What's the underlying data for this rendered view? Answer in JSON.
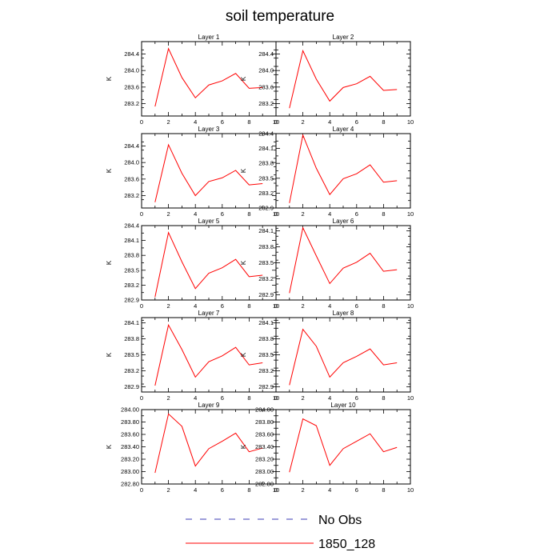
{
  "title": "soil temperature",
  "legend": {
    "placement": "bottom",
    "entries": [
      {
        "label": "No Obs",
        "color": "#3b3bb5",
        "dashed": true
      },
      {
        "label": "1850_128",
        "color": "#ff0000",
        "dashed": false
      }
    ]
  },
  "chart_data": [
    {
      "type": "line",
      "title": "Layer 1",
      "ylabel": "K",
      "xlim": [
        0,
        10
      ],
      "ylim": [
        282.9,
        284.7
      ],
      "xticks": [
        0,
        2,
        4,
        6,
        8,
        10
      ],
      "yticks": [
        "283.2",
        "283.6",
        "284.0",
        "284.4"
      ],
      "series": [
        {
          "name": "1850_128",
          "color": "#ff0000",
          "x": [
            1,
            2,
            3,
            4,
            5,
            6,
            7,
            8,
            9
          ],
          "y": [
            283.13,
            284.53,
            283.83,
            283.34,
            283.65,
            283.75,
            283.93,
            283.57,
            283.59
          ]
        }
      ]
    },
    {
      "type": "line",
      "title": "Layer 2",
      "ylabel": "K",
      "xlim": [
        0,
        10
      ],
      "ylim": [
        282.9,
        284.7
      ],
      "xticks": [
        0,
        2,
        4,
        6,
        8,
        10
      ],
      "yticks": [
        "283.2",
        "283.6",
        "284.0",
        "284.4"
      ],
      "series": [
        {
          "name": "1850_128",
          "color": "#ff0000",
          "x": [
            1,
            2,
            3,
            4,
            5,
            6,
            7,
            8,
            9
          ],
          "y": [
            283.09,
            284.48,
            283.79,
            283.26,
            283.59,
            283.68,
            283.86,
            283.52,
            283.54
          ]
        }
      ]
    },
    {
      "type": "line",
      "title": "Layer 3",
      "ylabel": "K",
      "xlim": [
        0,
        10
      ],
      "ylim": [
        282.9,
        284.7
      ],
      "xticks": [
        0,
        2,
        4,
        6,
        8,
        10
      ],
      "yticks": [
        "283.2",
        "283.6",
        "284.0",
        "284.4"
      ],
      "series": [
        {
          "name": "1850_128",
          "color": "#ff0000",
          "x": [
            1,
            2,
            3,
            4,
            5,
            6,
            7,
            8,
            9
          ],
          "y": [
            283.04,
            284.43,
            283.74,
            283.2,
            283.54,
            283.63,
            283.81,
            283.46,
            283.49
          ]
        }
      ]
    },
    {
      "type": "line",
      "title": "Layer 4",
      "ylabel": "K",
      "xlim": [
        0,
        10
      ],
      "ylim": [
        282.9,
        284.4
      ],
      "xticks": [
        0,
        2,
        4,
        6,
        8,
        10
      ],
      "yticks": [
        "282.9",
        "283.2",
        "283.5",
        "283.8",
        "284.1",
        "284.4"
      ],
      "series": [
        {
          "name": "1850_128",
          "color": "#ff0000",
          "x": [
            1,
            2,
            3,
            4,
            5,
            6,
            7,
            8,
            9
          ],
          "y": [
            283.0,
            284.37,
            283.7,
            283.17,
            283.49,
            283.59,
            283.77,
            283.42,
            283.45
          ]
        }
      ]
    },
    {
      "type": "line",
      "title": "Layer 5",
      "ylabel": "K",
      "xlim": [
        0,
        10
      ],
      "ylim": [
        282.9,
        284.4
      ],
      "xticks": [
        0,
        2,
        4,
        6,
        8,
        10
      ],
      "yticks": [
        "282.9",
        "283.2",
        "283.5",
        "283.8",
        "284.1",
        "284.4"
      ],
      "series": [
        {
          "name": "1850_128",
          "color": "#ff0000",
          "x": [
            1,
            2,
            3,
            4,
            5,
            6,
            7,
            8,
            9
          ],
          "y": [
            282.96,
            284.26,
            283.67,
            283.13,
            283.44,
            283.55,
            283.72,
            283.37,
            283.4
          ]
        }
      ]
    },
    {
      "type": "line",
      "title": "Layer 6",
      "ylabel": "K",
      "xlim": [
        0,
        10
      ],
      "ylim": [
        282.8,
        284.2
      ],
      "xticks": [
        0,
        2,
        4,
        6,
        8,
        10
      ],
      "yticks": [
        "282.9",
        "283.2",
        "283.5",
        "283.8",
        "284.1"
      ],
      "series": [
        {
          "name": "1850_128",
          "color": "#ff0000",
          "x": [
            1,
            2,
            3,
            4,
            5,
            6,
            7,
            8,
            9
          ],
          "y": [
            282.93,
            284.16,
            283.63,
            283.11,
            283.4,
            283.51,
            283.68,
            283.34,
            283.37
          ]
        }
      ]
    },
    {
      "type": "line",
      "title": "Layer 7",
      "ylabel": "K",
      "xlim": [
        0,
        10
      ],
      "ylim": [
        282.8,
        284.2
      ],
      "xticks": [
        0,
        2,
        4,
        6,
        8,
        10
      ],
      "yticks": [
        "282.9",
        "283.2",
        "283.5",
        "283.8",
        "284.1"
      ],
      "series": [
        {
          "name": "1850_128",
          "color": "#ff0000",
          "x": [
            1,
            2,
            3,
            4,
            5,
            6,
            7,
            8,
            9
          ],
          "y": [
            282.92,
            284.06,
            283.6,
            283.08,
            283.37,
            283.48,
            283.64,
            283.31,
            283.35
          ]
        }
      ]
    },
    {
      "type": "line",
      "title": "Layer 8",
      "ylabel": "K",
      "xlim": [
        0,
        10
      ],
      "ylim": [
        282.8,
        284.2
      ],
      "xticks": [
        0,
        2,
        4,
        6,
        8,
        10
      ],
      "yticks": [
        "282.9",
        "283.2",
        "283.5",
        "283.8",
        "284.1"
      ],
      "series": [
        {
          "name": "1850_128",
          "color": "#ff0000",
          "x": [
            1,
            2,
            3,
            4,
            5,
            6,
            7,
            8,
            9
          ],
          "y": [
            282.93,
            283.98,
            283.66,
            283.08,
            283.35,
            283.47,
            283.61,
            283.31,
            283.35
          ]
        }
      ]
    },
    {
      "type": "line",
      "title": "Layer 9",
      "ylabel": "K",
      "xlim": [
        0,
        10
      ],
      "ylim": [
        282.8,
        284.0
      ],
      "xticks": [
        0,
        2,
        4,
        6,
        8,
        10
      ],
      "yticks": [
        "282.80",
        "283.00",
        "283.20",
        "283.40",
        "283.60",
        "283.80",
        "284.00"
      ],
      "series": [
        {
          "name": "1850_128",
          "color": "#ff0000",
          "x": [
            1,
            2,
            3,
            4,
            5,
            6,
            7,
            8,
            9
          ],
          "y": [
            282.98,
            283.93,
            283.73,
            283.09,
            283.37,
            283.49,
            283.62,
            283.32,
            283.38
          ]
        }
      ]
    },
    {
      "type": "line",
      "title": "Layer 10",
      "ylabel": "K",
      "xlim": [
        0,
        10
      ],
      "ylim": [
        282.8,
        284.0
      ],
      "xticks": [
        0,
        2,
        4,
        6,
        8,
        10
      ],
      "yticks": [
        "282.80",
        "283.00",
        "283.20",
        "283.40",
        "283.60",
        "283.80",
        "284.00"
      ],
      "series": [
        {
          "name": "1850_128",
          "color": "#ff0000",
          "x": [
            1,
            2,
            3,
            4,
            5,
            6,
            7,
            8,
            9
          ],
          "y": [
            282.99,
            283.85,
            283.74,
            283.1,
            283.37,
            283.49,
            283.61,
            283.32,
            283.39
          ]
        }
      ]
    }
  ]
}
